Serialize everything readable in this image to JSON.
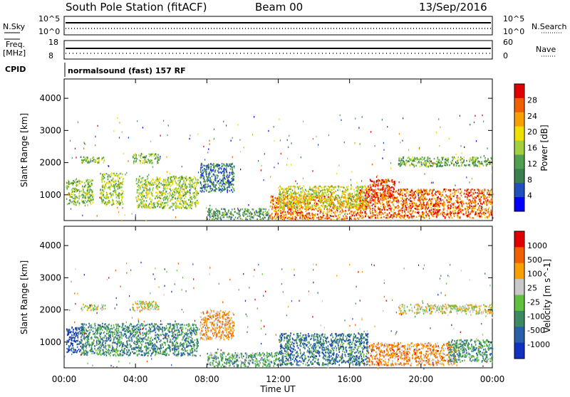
{
  "header": {
    "station": "South Pole Station (fitACF)",
    "beam": "Beam 00",
    "date": "13/Sep/2016"
  },
  "status": {
    "nsky_label": "N.Sky",
    "nsearch_label": "N.Search",
    "freq_label_1": "Freq.",
    "freq_label_2": "[MHz]",
    "nave_label": "Nave",
    "cpid_label": "CPID",
    "cpid_text": "normalsound (fast) 157 RF",
    "nsky_ticks": [
      "10^5",
      "10^0"
    ],
    "nsearch_ticks": [
      "10^5",
      "10^0"
    ],
    "freq_ticks": [
      "18",
      "8"
    ],
    "nave_ticks": [
      "60",
      "0"
    ]
  },
  "chart_data": [
    {
      "type": "heatmap",
      "name": "power",
      "ylabel": "Slant Range [km]",
      "yticks": [
        "4000",
        "3000",
        "2000",
        "1000"
      ],
      "ylim": [
        200,
        4600
      ],
      "colorbar_label": "Power [dB]",
      "colorbar_ticks": [
        "28",
        "24",
        "20",
        "16",
        "12",
        "8",
        "4"
      ],
      "colors": [
        "#0000ff",
        "#2050c0",
        "#3c8050",
        "#50a050",
        "#a0d040",
        "#f0e000",
        "#f8a000",
        "#f06000",
        "#e00000"
      ],
      "regions": [
        {
          "t0": 0.1,
          "t1": 1.6,
          "r0": 700,
          "r1": 1500,
          "level": 0.45
        },
        {
          "t0": 0.9,
          "t1": 2.3,
          "r0": 2000,
          "r1": 2200,
          "level": 0.45
        },
        {
          "t0": 2.0,
          "t1": 3.3,
          "r0": 700,
          "r1": 1700,
          "level": 0.5
        },
        {
          "t0": 3.8,
          "t1": 5.3,
          "r0": 2000,
          "r1": 2300,
          "level": 0.45
        },
        {
          "t0": 4.0,
          "t1": 7.5,
          "r0": 600,
          "r1": 1600,
          "level": 0.5
        },
        {
          "t0": 7.6,
          "t1": 9.5,
          "r0": 1100,
          "r1": 2000,
          "level": 0.25
        },
        {
          "t0": 8.0,
          "t1": 11.5,
          "r0": 250,
          "r1": 600,
          "level": 0.35
        },
        {
          "t0": 11.5,
          "t1": 16.5,
          "r0": 250,
          "r1": 1000,
          "level": 0.78
        },
        {
          "t0": 12.0,
          "t1": 17.0,
          "r0": 600,
          "r1": 1300,
          "level": 0.55
        },
        {
          "t0": 16.5,
          "t1": 24.0,
          "r0": 300,
          "r1": 1200,
          "level": 0.82
        },
        {
          "t0": 17.0,
          "t1": 18.5,
          "r0": 900,
          "r1": 1500,
          "level": 0.9
        },
        {
          "t0": 18.7,
          "t1": 24.0,
          "r0": 1900,
          "r1": 2200,
          "level": 0.4
        }
      ]
    },
    {
      "type": "heatmap",
      "name": "velocity",
      "ylabel": "Slant Range [km]",
      "yticks": [
        "4000",
        "3000",
        "2000",
        "1000"
      ],
      "ylim": [
        200,
        4600
      ],
      "colorbar_label": "Velocity [m s^-1]",
      "colorbar_ticks": [
        "1000",
        "500",
        "100",
        "25",
        "-25",
        "-100",
        "-500",
        "-1000"
      ],
      "colors": [
        "#1030c0",
        "#2a60a8",
        "#3c8a60",
        "#60c040",
        "#c8c8c8",
        "#f8a000",
        "#f06000",
        "#e00000"
      ],
      "regions": [
        {
          "t0": 0.1,
          "t1": 1.0,
          "r0": 700,
          "r1": 1500,
          "level": 0.1
        },
        {
          "t0": 0.9,
          "t1": 7.5,
          "r0": 600,
          "r1": 1600,
          "level": 0.3
        },
        {
          "t0": 0.9,
          "t1": 2.3,
          "r0": 2000,
          "r1": 2200,
          "level": 0.55
        },
        {
          "t0": 3.8,
          "t1": 5.3,
          "r0": 2000,
          "r1": 2300,
          "level": 0.55
        },
        {
          "t0": 7.6,
          "t1": 9.5,
          "r0": 1100,
          "r1": 2000,
          "level": 0.7
        },
        {
          "t0": 8.0,
          "t1": 12.0,
          "r0": 250,
          "r1": 700,
          "level": 0.38
        },
        {
          "t0": 12.0,
          "t1": 17.0,
          "r0": 300,
          "r1": 1300,
          "level": 0.25
        },
        {
          "t0": 17.0,
          "t1": 22.0,
          "r0": 300,
          "r1": 1000,
          "level": 0.72
        },
        {
          "t0": 21.5,
          "t1": 24.0,
          "r0": 400,
          "r1": 1100,
          "level": 0.35
        },
        {
          "t0": 18.7,
          "t1": 24.0,
          "r0": 1900,
          "r1": 2200,
          "level": 0.55
        }
      ]
    }
  ],
  "time_axis": {
    "ticks": [
      "00:00",
      "04:00",
      "08:00",
      "12:00",
      "16:00",
      "20:00",
      "00:00"
    ],
    "label": "Time UT"
  }
}
